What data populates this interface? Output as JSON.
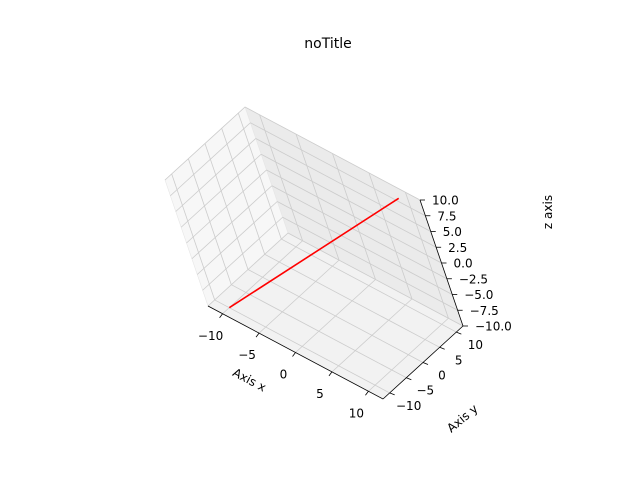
{
  "chart_data": {
    "type": "line",
    "projection": "3d",
    "title": "noTitle",
    "xlabel": "Axis x",
    "ylabel": "Axis y",
    "zlabel": "z axis",
    "xlim": [
      -12,
      12
    ],
    "ylim": [
      -12,
      12
    ],
    "zlim": [
      -10,
      10
    ],
    "xticks": [
      -10,
      -5,
      0,
      5,
      10
    ],
    "yticks": [
      -10,
      -5,
      0,
      5,
      10
    ],
    "zticks": [
      -10,
      -7.5,
      -5,
      -2.5,
      0,
      2.5,
      5,
      7.5,
      10
    ],
    "xtick_labels": [
      "−10",
      "−5",
      "0",
      "5",
      "10"
    ],
    "ytick_labels": [
      "−10",
      "−5",
      "0",
      "5",
      "10"
    ],
    "ztick_labels": [
      "−10.0",
      "−7.5",
      "−5.0",
      "−2.5",
      "0.0",
      "2.5",
      "5.0",
      "7.5",
      "10.0"
    ],
    "grid": true,
    "series": [
      {
        "color": "#ff0000",
        "x": [
          -10,
          10
        ],
        "y": [
          -10,
          10
        ],
        "z": [
          -10,
          10
        ]
      }
    ]
  }
}
